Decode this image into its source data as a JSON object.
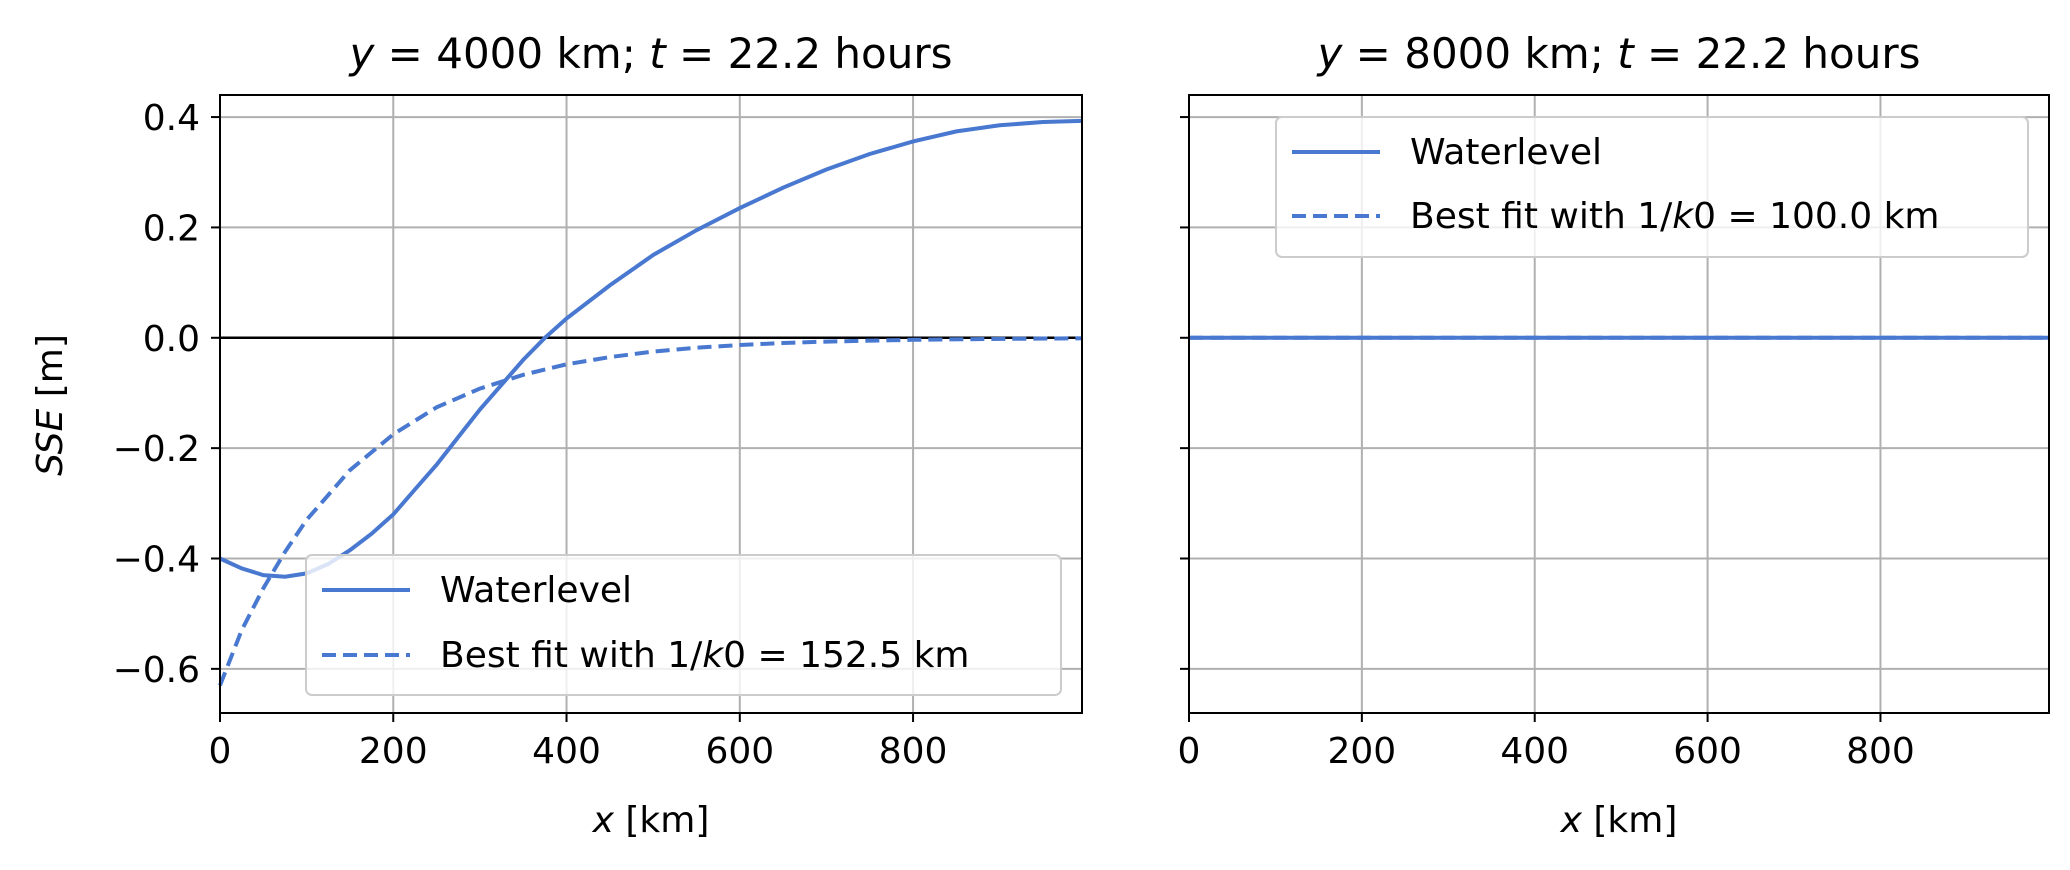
{
  "figure": {
    "background": "#ffffff",
    "line_color": "#4878cf",
    "zero_line_color": "#000000",
    "grid_color": "#b0b0b0"
  },
  "chart_data": [
    {
      "type": "line",
      "title_prefix": "y",
      "title_mid": " = 4000 km; ",
      "title_var2": "t",
      "title_suffix": " = 22.2 hours",
      "xlabel_var": "x",
      "xlabel_unit": " [km]",
      "ylabel_var": "SSE",
      "ylabel_unit": " [m]",
      "xlim": [
        0,
        995
      ],
      "ylim": [
        -0.68,
        0.44
      ],
      "xticks": [
        0,
        200,
        400,
        600,
        800
      ],
      "xtick_labels": [
        "0",
        "200",
        "400",
        "600",
        "800"
      ],
      "yticks": [
        -0.6,
        -0.4,
        -0.2,
        0.0,
        0.2,
        0.4
      ],
      "ytick_labels": [
        "−0.6",
        "−0.4",
        "−0.2",
        "0.0",
        "0.2",
        "0.4"
      ],
      "show_ytick_labels": true,
      "grid": true,
      "hline": 0,
      "legend_position": "lower-right",
      "series": [
        {
          "name": "Waterlevel",
          "style": "solid",
          "x": [
            0,
            25,
            50,
            75,
            100,
            125,
            150,
            175,
            200,
            225,
            250,
            275,
            300,
            325,
            350,
            375,
            400,
            450,
            500,
            550,
            600,
            650,
            700,
            750,
            800,
            850,
            900,
            950,
            995
          ],
          "y": [
            -0.4,
            -0.418,
            -0.43,
            -0.433,
            -0.427,
            -0.41,
            -0.385,
            -0.355,
            -0.32,
            -0.275,
            -0.23,
            -0.18,
            -0.13,
            -0.085,
            -0.04,
            0.0,
            0.035,
            0.095,
            0.15,
            0.195,
            0.235,
            0.272,
            0.305,
            0.333,
            0.356,
            0.374,
            0.385,
            0.391,
            0.393
          ]
        },
        {
          "name": "Best fit with 1/k0 = 152.5 km",
          "legend_prefix": "Best fit with 1/",
          "legend_var": "k",
          "legend_suffix": "0 = 152.5 km",
          "style": "dashed",
          "x": [
            0,
            25,
            50,
            75,
            100,
            150,
            200,
            250,
            300,
            350,
            400,
            450,
            500,
            550,
            600,
            650,
            700,
            800,
            900,
            995
          ],
          "y": [
            -0.63,
            -0.53,
            -0.454,
            -0.388,
            -0.33,
            -0.24,
            -0.175,
            -0.126,
            -0.092,
            -0.067,
            -0.048,
            -0.035,
            -0.025,
            -0.018,
            -0.013,
            -0.0095,
            -0.007,
            -0.0037,
            -0.002,
            -0.001
          ]
        }
      ]
    },
    {
      "type": "line",
      "title_prefix": "y",
      "title_mid": " = 8000 km; ",
      "title_var2": "t",
      "title_suffix": " = 22.2 hours",
      "xlabel_var": "x",
      "xlabel_unit": " [km]",
      "xlim": [
        0,
        995
      ],
      "ylim": [
        -0.68,
        0.44
      ],
      "xticks": [
        0,
        200,
        400,
        600,
        800
      ],
      "xtick_labels": [
        "0",
        "200",
        "400",
        "600",
        "800"
      ],
      "yticks": [
        -0.6,
        -0.4,
        -0.2,
        0.0,
        0.2,
        0.4
      ],
      "show_ytick_labels": false,
      "grid": true,
      "hline": 0,
      "legend_position": "upper-right",
      "series": [
        {
          "name": "Waterlevel",
          "style": "solid",
          "x": [
            0,
            995
          ],
          "y": [
            0,
            0
          ]
        },
        {
          "name": "Best fit with 1/k0 = 100.0 km",
          "legend_prefix": "Best fit with 1/",
          "legend_var": "k",
          "legend_suffix": "0 = 100.0 km",
          "style": "dashed",
          "x": [
            0,
            995
          ],
          "y": [
            0,
            0
          ]
        }
      ]
    }
  ]
}
